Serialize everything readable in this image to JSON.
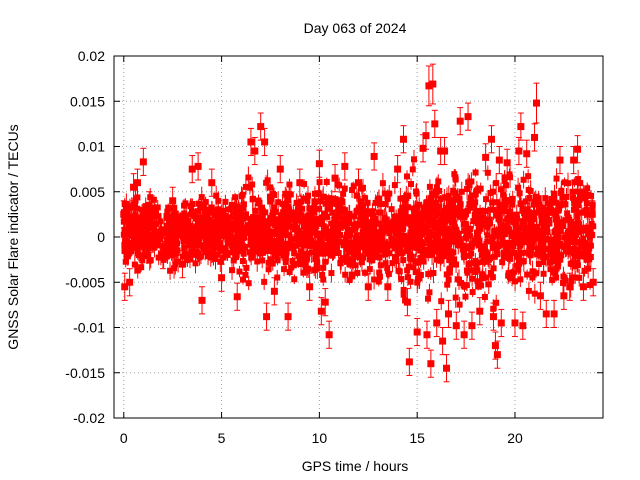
{
  "chart_data": {
    "type": "scatter",
    "title": "Day 063 of 2024",
    "xlabel": "GPS time / hours",
    "ylabel": "GNSS Solar Flare indicator / TECUs",
    "xlim": [
      -0.5,
      24.5
    ],
    "ylim": [
      -0.02,
      0.02
    ],
    "xticks": [
      0,
      5,
      10,
      15,
      20
    ],
    "xtick_labels": [
      "0",
      "5",
      "10",
      "15",
      "20"
    ],
    "yticks": [
      -0.02,
      -0.015,
      -0.01,
      -0.005,
      0,
      0.005,
      0.01,
      0.015,
      0.02
    ],
    "ytick_labels": [
      "-0.02",
      "-0.015",
      "-0.01",
      "-0.005",
      "0",
      "0.005",
      "0.01",
      "0.015",
      "0.02"
    ],
    "grid": true,
    "series_color": "#ff0000",
    "series": [
      {
        "marker": "square",
        "error_bars": true,
        "points": [
          {
            "x": 0.0,
            "y": 0.0025,
            "err": 0.0015
          },
          {
            "x": 0.05,
            "y": -0.0055,
            "err": 0.0015
          },
          {
            "x": 0.3,
            "y": -0.005,
            "err": 0.0015
          },
          {
            "x": 0.5,
            "y": 0.0055,
            "err": 0.0015
          },
          {
            "x": 0.7,
            "y": 0.006,
            "err": 0.0015
          },
          {
            "x": 1.0,
            "y": 0.0083,
            "err": 0.0015
          },
          {
            "x": 1.3,
            "y": 0.0035,
            "err": 0.0015
          },
          {
            "x": 2.0,
            "y": -0.002,
            "err": 0.0015
          },
          {
            "x": 2.5,
            "y": 0.004,
            "err": 0.0015
          },
          {
            "x": 3.0,
            "y": -0.003,
            "err": 0.0015
          },
          {
            "x": 3.5,
            "y": 0.0075,
            "err": 0.0015
          },
          {
            "x": 3.8,
            "y": 0.0078,
            "err": 0.0015
          },
          {
            "x": 4.0,
            "y": -0.007,
            "err": 0.0015
          },
          {
            "x": 4.5,
            "y": 0.006,
            "err": 0.0015
          },
          {
            "x": 5.0,
            "y": -0.0045,
            "err": 0.0015
          },
          {
            "x": 5.8,
            "y": -0.0066,
            "err": 0.0015
          },
          {
            "x": 6.5,
            "y": 0.0105,
            "err": 0.0015
          },
          {
            "x": 6.7,
            "y": 0.0095,
            "err": 0.0015
          },
          {
            "x": 7.0,
            "y": 0.0122,
            "err": 0.0015
          },
          {
            "x": 7.2,
            "y": 0.0105,
            "err": 0.0015
          },
          {
            "x": 7.3,
            "y": -0.0088,
            "err": 0.0015
          },
          {
            "x": 7.7,
            "y": -0.006,
            "err": 0.0015
          },
          {
            "x": 8.0,
            "y": 0.0075,
            "err": 0.0015
          },
          {
            "x": 8.4,
            "y": -0.0088,
            "err": 0.0015
          },
          {
            "x": 9.0,
            "y": 0.006,
            "err": 0.0015
          },
          {
            "x": 9.5,
            "y": -0.0055,
            "err": 0.0015
          },
          {
            "x": 10.0,
            "y": 0.0081,
            "err": 0.0015
          },
          {
            "x": 10.1,
            "y": -0.0082,
            "err": 0.0015
          },
          {
            "x": 10.3,
            "y": -0.0072,
            "err": 0.0015
          },
          {
            "x": 10.5,
            "y": -0.0108,
            "err": 0.0015
          },
          {
            "x": 10.8,
            "y": 0.0065,
            "err": 0.0015
          },
          {
            "x": 11.3,
            "y": 0.0078,
            "err": 0.0015
          },
          {
            "x": 12.0,
            "y": 0.006,
            "err": 0.0015
          },
          {
            "x": 12.5,
            "y": -0.0055,
            "err": 0.0015
          },
          {
            "x": 12.8,
            "y": 0.0089,
            "err": 0.0015
          },
          {
            "x": 13.5,
            "y": -0.0055,
            "err": 0.0015
          },
          {
            "x": 14.0,
            "y": 0.0075,
            "err": 0.0015
          },
          {
            "x": 14.3,
            "y": 0.0108,
            "err": 0.0015
          },
          {
            "x": 14.5,
            "y": -0.0072,
            "err": 0.0015
          },
          {
            "x": 14.6,
            "y": -0.0138,
            "err": 0.0015
          },
          {
            "x": 15.0,
            "y": -0.0105,
            "err": 0.0015
          },
          {
            "x": 15.3,
            "y": 0.0098,
            "err": 0.0015
          },
          {
            "x": 15.45,
            "y": 0.0112,
            "err": 0.0015
          },
          {
            "x": 15.5,
            "y": -0.0108,
            "err": 0.0015
          },
          {
            "x": 15.6,
            "y": 0.0167,
            "err": 0.0022
          },
          {
            "x": 15.7,
            "y": -0.014,
            "err": 0.0015
          },
          {
            "x": 15.8,
            "y": 0.0169,
            "err": 0.0022
          },
          {
            "x": 15.9,
            "y": 0.0125,
            "err": 0.0015
          },
          {
            "x": 16.0,
            "y": -0.0095,
            "err": 0.0015
          },
          {
            "x": 16.2,
            "y": 0.0095,
            "err": 0.0015
          },
          {
            "x": 16.3,
            "y": -0.0115,
            "err": 0.0015
          },
          {
            "x": 16.4,
            "y": 0.0095,
            "err": 0.0015
          },
          {
            "x": 16.5,
            "y": -0.0145,
            "err": 0.0015
          },
          {
            "x": 16.6,
            "y": -0.0085,
            "err": 0.0015
          },
          {
            "x": 17.0,
            "y": -0.0098,
            "err": 0.0015
          },
          {
            "x": 17.2,
            "y": 0.0128,
            "err": 0.0015
          },
          {
            "x": 17.4,
            "y": -0.0108,
            "err": 0.0015
          },
          {
            "x": 17.6,
            "y": 0.0133,
            "err": 0.0015
          },
          {
            "x": 17.8,
            "y": -0.0098,
            "err": 0.0015
          },
          {
            "x": 18.2,
            "y": -0.0082,
            "err": 0.0015
          },
          {
            "x": 18.5,
            "y": 0.0088,
            "err": 0.0015
          },
          {
            "x": 18.8,
            "y": 0.0108,
            "err": 0.0015
          },
          {
            "x": 18.9,
            "y": -0.0088,
            "err": 0.0015
          },
          {
            "x": 19.0,
            "y": -0.012,
            "err": 0.0015
          },
          {
            "x": 19.1,
            "y": -0.013,
            "err": 0.0015
          },
          {
            "x": 19.2,
            "y": 0.0085,
            "err": 0.0015
          },
          {
            "x": 19.3,
            "y": -0.0095,
            "err": 0.0015
          },
          {
            "x": 19.6,
            "y": 0.0082,
            "err": 0.0015
          },
          {
            "x": 20.0,
            "y": -0.0095,
            "err": 0.0015
          },
          {
            "x": 20.2,
            "y": 0.0095,
            "err": 0.0015
          },
          {
            "x": 20.3,
            "y": 0.0122,
            "err": 0.0015
          },
          {
            "x": 20.4,
            "y": -0.0098,
            "err": 0.0015
          },
          {
            "x": 20.6,
            "y": 0.0092,
            "err": 0.0015
          },
          {
            "x": 21.0,
            "y": 0.011,
            "err": 0.0015
          },
          {
            "x": 21.1,
            "y": 0.0148,
            "err": 0.0022
          },
          {
            "x": 21.3,
            "y": -0.0065,
            "err": 0.0015
          },
          {
            "x": 21.6,
            "y": -0.0085,
            "err": 0.0015
          },
          {
            "x": 22.0,
            "y": -0.0085,
            "err": 0.0015
          },
          {
            "x": 22.3,
            "y": 0.0085,
            "err": 0.0015
          },
          {
            "x": 22.5,
            "y": -0.0065,
            "err": 0.0015
          },
          {
            "x": 22.8,
            "y": -0.0055,
            "err": 0.0015
          },
          {
            "x": 23.0,
            "y": 0.0085,
            "err": 0.0015
          },
          {
            "x": 23.2,
            "y": 0.0097,
            "err": 0.0015
          },
          {
            "x": 23.5,
            "y": -0.0055,
            "err": 0.0015
          },
          {
            "x": 23.8,
            "y": 0.0005,
            "err": 0.0015
          },
          {
            "x": 23.95,
            "y": 0.0025,
            "err": 0.0015
          },
          {
            "x": 24.0,
            "y": -0.005,
            "err": 0.0015
          }
        ]
      }
    ]
  }
}
